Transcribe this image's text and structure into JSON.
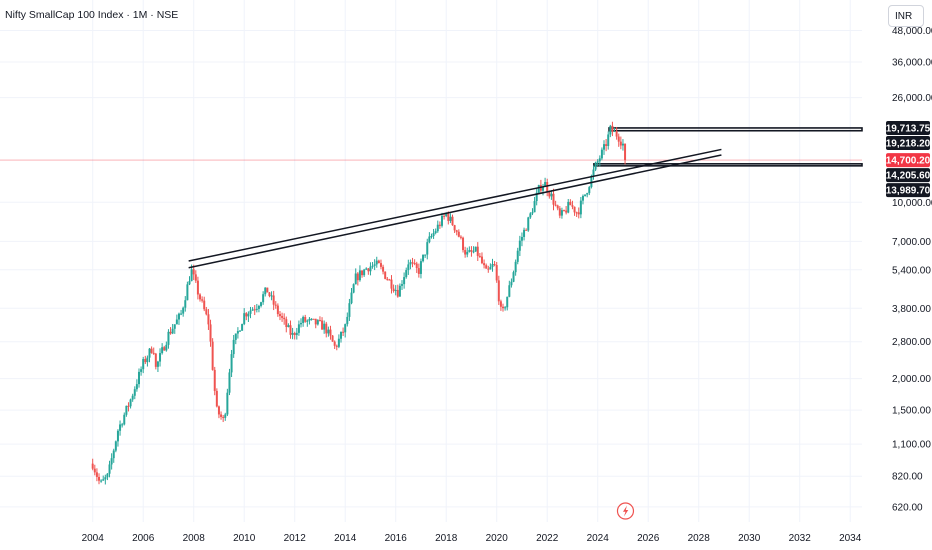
{
  "header": {
    "title": "Nifty SmallCap 100 Index · 1M · NSE",
    "currency": "INR"
  },
  "colors": {
    "up": "#26a69a",
    "down": "#ef5350",
    "trendline": "#131722",
    "last_price": "#f23645",
    "grid": "#f0f3fa"
  },
  "chart_data": {
    "type": "candlestick",
    "scale": "log",
    "ylim": [
      540,
      50000
    ],
    "xlim": [
      2003.2,
      2035.2
    ],
    "x_ticks": [
      "2004",
      "2006",
      "2008",
      "2010",
      "2012",
      "2014",
      "2016",
      "2018",
      "2020",
      "2022",
      "2024",
      "2026",
      "2028",
      "2030",
      "2032",
      "2034"
    ],
    "y_ticks": [
      "620.00",
      "820.00",
      "1,100.00",
      "1,500.00",
      "2,000.00",
      "2,800.00",
      "3,800.00",
      "5,400.00",
      "7,000.00",
      "10,000.00",
      "26,000.00",
      "36,000.00",
      "48,000.00"
    ],
    "price_labels": [
      {
        "label": "19,713.75",
        "value": 19713.75,
        "style": "dark"
      },
      {
        "label": "19,218.20",
        "value": 19218.2,
        "style": "dark"
      },
      {
        "label": "14,700.20",
        "value": 14700.2,
        "style": "last"
      },
      {
        "label": "14,205.60",
        "value": 14205.6,
        "style": "dark"
      },
      {
        "label": "13,989.70",
        "value": 13989.7,
        "style": "dark"
      }
    ],
    "last_price": 14700.2,
    "anchors": [
      [
        2004.0,
        920
      ],
      [
        2004.3,
        760
      ],
      [
        2004.6,
        820
      ],
      [
        2005.0,
        1250
      ],
      [
        2005.5,
        1650
      ],
      [
        2006.0,
        2300
      ],
      [
        2006.4,
        2700
      ],
      [
        2006.5,
        2200
      ],
      [
        2007.0,
        3000
      ],
      [
        2007.5,
        3600
      ],
      [
        2007.9,
        5400
      ],
      [
        2008.2,
        4300
      ],
      [
        2008.6,
        3300
      ],
      [
        2008.9,
        1500
      ],
      [
        2009.2,
        1350
      ],
      [
        2009.5,
        2600
      ],
      [
        2010.0,
        3600
      ],
      [
        2010.5,
        3900
      ],
      [
        2010.9,
        4500
      ],
      [
        2011.3,
        3700
      ],
      [
        2011.9,
        2950
      ],
      [
        2012.3,
        3400
      ],
      [
        2012.9,
        3300
      ],
      [
        2013.2,
        3200
      ],
      [
        2013.6,
        2650
      ],
      [
        2014.0,
        3200
      ],
      [
        2014.4,
        5000
      ],
      [
        2014.9,
        5550
      ],
      [
        2015.3,
        5650
      ],
      [
        2015.7,
        4950
      ],
      [
        2016.1,
        4400
      ],
      [
        2016.5,
        5800
      ],
      [
        2016.9,
        5300
      ],
      [
        2017.3,
        7000
      ],
      [
        2017.8,
        8400
      ],
      [
        2018.0,
        9000
      ],
      [
        2018.4,
        7800
      ],
      [
        2018.8,
        6200
      ],
      [
        2019.2,
        6400
      ],
      [
        2019.6,
        5200
      ],
      [
        2019.9,
        5700
      ],
      [
        2020.2,
        3500
      ],
      [
        2020.6,
        5000
      ],
      [
        2020.9,
        6900
      ],
      [
        2021.3,
        8700
      ],
      [
        2021.7,
        11500
      ],
      [
        2021.9,
        11900
      ],
      [
        2022.2,
        10400
      ],
      [
        2022.5,
        8700
      ],
      [
        2022.9,
        9800
      ],
      [
        2023.2,
        9100
      ],
      [
        2023.6,
        11400
      ],
      [
        2023.9,
        13800
      ],
      [
        2024.3,
        16700
      ],
      [
        2024.5,
        19400
      ],
      [
        2024.8,
        18400
      ],
      [
        2025.0,
        17000
      ],
      [
        2025.1,
        14700
      ]
    ],
    "trendlines": [
      {
        "x1": 2007.8,
        "y1": 5850,
        "x2": 2028.9,
        "y2": 16200
      },
      {
        "x1": 2007.8,
        "y1": 5500,
        "x2": 2028.9,
        "y2": 15400
      }
    ],
    "zones": [
      {
        "x1": 2024.45,
        "x2": 2035.2,
        "top": 19713.75,
        "bottom": 19218.2
      },
      {
        "x1": 2023.85,
        "x2": 2035.2,
        "top": 14205.6,
        "bottom": 13989.7
      }
    ],
    "event_marker": {
      "x": 2025.1,
      "icon": "lightning-icon"
    }
  }
}
